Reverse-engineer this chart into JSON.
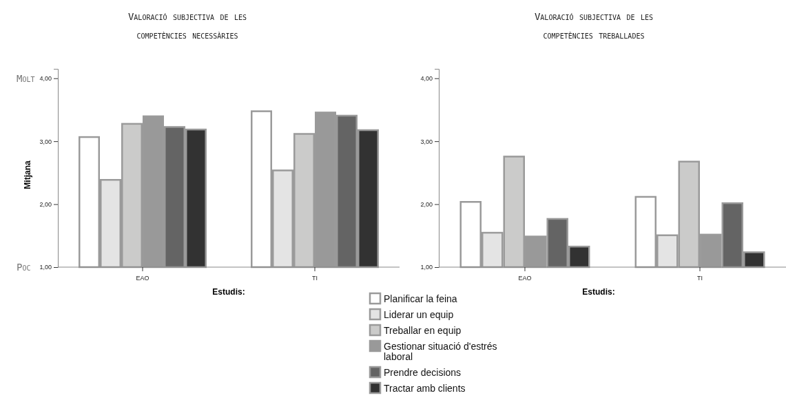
{
  "chart_data": [
    {
      "type": "bar",
      "title": "Valoració subjectiva de les competències necessàries",
      "ylabel": "Mitjana",
      "xlabel": "Estudis:",
      "categories": [
        "EAO",
        "TI"
      ],
      "ylim": [
        1,
        4.15
      ],
      "yticks": [
        {
          "value": 1,
          "label": "1,00"
        },
        {
          "value": 2,
          "label": "2,00"
        },
        {
          "value": 3,
          "label": "3,00"
        },
        {
          "value": 4,
          "label": "4,00"
        }
      ],
      "annotations": [
        "Molt",
        "Poc"
      ],
      "legend": "bottom",
      "series": [
        {
          "name": "Planificar la feina",
          "color": "#ffffff",
          "values": [
            3.08,
            3.49
          ]
        },
        {
          "name": "Liderar un equip",
          "color": "#e4e4e4",
          "values": [
            2.4,
            2.55
          ]
        },
        {
          "name": "Treballar en equip",
          "color": "#cbcbca",
          "values": [
            3.29,
            3.13
          ]
        },
        {
          "name": "Gestionar situació d'estrés laboral",
          "color": "#999999",
          "values": [
            3.41,
            3.47
          ]
        },
        {
          "name": "Prendre decisions",
          "color": "#646464",
          "values": [
            3.24,
            3.42
          ]
        },
        {
          "name": "Tractar amb clients",
          "color": "#323232",
          "values": [
            3.2,
            3.19
          ]
        }
      ]
    },
    {
      "type": "bar",
      "title": "Valoració subjectiva de les competències treballades",
      "xlabel": "Estudis:",
      "categories": [
        "EAO",
        "TI"
      ],
      "ylim": [
        1,
        4.15
      ],
      "yticks": [
        {
          "value": 1,
          "label": "1,00"
        },
        {
          "value": 2,
          "label": "2,00"
        },
        {
          "value": 3,
          "label": "3,00"
        },
        {
          "value": 4,
          "label": "4,00"
        }
      ],
      "series": [
        {
          "color": "#ffffff",
          "values": [
            2.05,
            2.13
          ]
        },
        {
          "color": "#e4e4e4",
          "values": [
            1.56,
            1.52
          ]
        },
        {
          "color": "#cbcbca",
          "values": [
            2.77,
            2.69
          ]
        },
        {
          "color": "#999999",
          "values": [
            1.5,
            1.53
          ]
        },
        {
          "color": "#646464",
          "values": [
            1.78,
            2.03
          ]
        },
        {
          "color": "#323232",
          "values": [
            1.34,
            1.25
          ]
        }
      ]
    }
  ]
}
